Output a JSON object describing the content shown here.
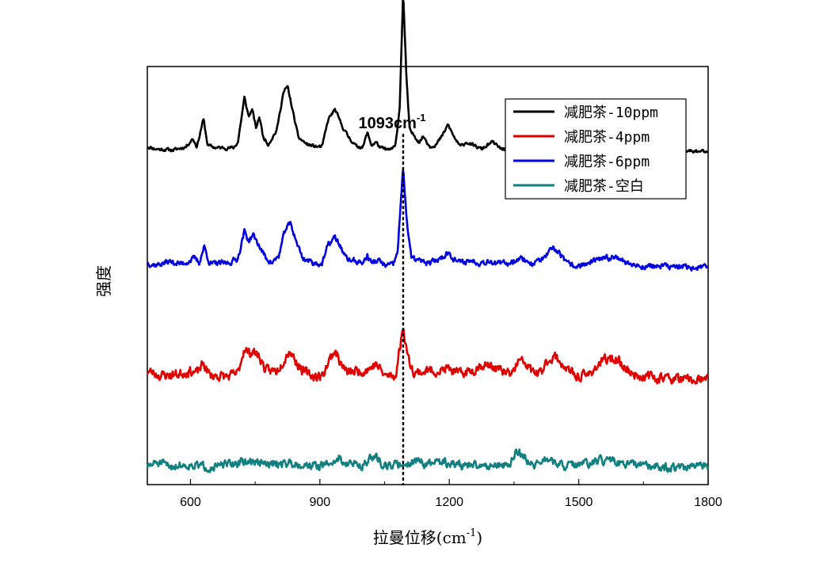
{
  "chart_data": {
    "type": "line",
    "title": "",
    "xlabel": "拉曼位移(cm",
    "xlabel_sup": "-1",
    "xlabel_tail": ")",
    "ylabel": "强度",
    "xlim": [
      500,
      1800
    ],
    "x_ticks": [
      600,
      900,
      1200,
      1500,
      1800
    ],
    "x_tick_labels": [
      "600",
      "900",
      "1200",
      "1500",
      "1800"
    ],
    "y_ticks_shown": false,
    "annotation": {
      "x": 1093,
      "text": "1093cm",
      "sup": "-1",
      "style": "dotted vertical line"
    },
    "legend_position": "top-right",
    "series": [
      {
        "name": "减肥茶-10ppm",
        "color": "#000000",
        "offset": 1.0,
        "noise": 0.012,
        "seed": 11,
        "points": [
          [
            500,
            0.06
          ],
          [
            520,
            0.04
          ],
          [
            560,
            0.03
          ],
          [
            590,
            0.06
          ],
          [
            605,
            0.13
          ],
          [
            615,
            0.06
          ],
          [
            630,
            0.3
          ],
          [
            640,
            0.07
          ],
          [
            660,
            0.05
          ],
          [
            700,
            0.05
          ],
          [
            710,
            0.1
          ],
          [
            725,
            0.48
          ],
          [
            735,
            0.32
          ],
          [
            743,
            0.38
          ],
          [
            752,
            0.22
          ],
          [
            760,
            0.32
          ],
          [
            768,
            0.15
          ],
          [
            780,
            0.08
          ],
          [
            800,
            0.2
          ],
          [
            815,
            0.52
          ],
          [
            825,
            0.58
          ],
          [
            838,
            0.35
          ],
          [
            850,
            0.14
          ],
          [
            870,
            0.08
          ],
          [
            890,
            0.06
          ],
          [
            905,
            0.06
          ],
          [
            920,
            0.3
          ],
          [
            935,
            0.38
          ],
          [
            950,
            0.25
          ],
          [
            965,
            0.15
          ],
          [
            985,
            0.06
          ],
          [
            1000,
            0.06
          ],
          [
            1010,
            0.18
          ],
          [
            1020,
            0.07
          ],
          [
            1030,
            0.1
          ],
          [
            1040,
            0.05
          ],
          [
            1060,
            0.03
          ],
          [
            1075,
            0.06
          ],
          [
            1085,
            0.4
          ],
          [
            1093,
            1.4
          ],
          [
            1100,
            0.7
          ],
          [
            1108,
            0.2
          ],
          [
            1120,
            0.15
          ],
          [
            1130,
            0.1
          ],
          [
            1140,
            0.15
          ],
          [
            1155,
            0.06
          ],
          [
            1170,
            0.08
          ],
          [
            1185,
            0.16
          ],
          [
            1197,
            0.25
          ],
          [
            1210,
            0.15
          ],
          [
            1225,
            0.06
          ],
          [
            1240,
            0.1
          ],
          [
            1255,
            0.07
          ],
          [
            1275,
            0.04
          ],
          [
            1300,
            0.1
          ],
          [
            1320,
            0.04
          ],
          [
            1350,
            0.05
          ],
          [
            1370,
            0.08
          ],
          [
            1400,
            0.06
          ],
          [
            1425,
            0.12
          ],
          [
            1440,
            0.22
          ],
          [
            1455,
            0.17
          ],
          [
            1470,
            0.07
          ],
          [
            1490,
            0.04
          ],
          [
            1510,
            0.05
          ],
          [
            1530,
            0.1
          ],
          [
            1550,
            0.07
          ],
          [
            1565,
            0.12
          ],
          [
            1575,
            0.1
          ],
          [
            1590,
            0.15
          ],
          [
            1605,
            0.08
          ],
          [
            1620,
            0.04
          ],
          [
            1650,
            0.04
          ],
          [
            1700,
            0.03
          ],
          [
            1750,
            0.02
          ],
          [
            1800,
            0.02
          ]
        ]
      },
      {
        "name": "减肥茶-4ppm",
        "color": "#e00000",
        "offset": -0.97,
        "noise": 0.035,
        "seed": 23,
        "points": [
          [
            500,
            0.1
          ],
          [
            530,
            0.06
          ],
          [
            570,
            0.07
          ],
          [
            600,
            0.1
          ],
          [
            615,
            0.08
          ],
          [
            630,
            0.16
          ],
          [
            645,
            0.06
          ],
          [
            690,
            0.05
          ],
          [
            710,
            0.08
          ],
          [
            725,
            0.3
          ],
          [
            735,
            0.25
          ],
          [
            745,
            0.27
          ],
          [
            760,
            0.22
          ],
          [
            775,
            0.1
          ],
          [
            800,
            0.1
          ],
          [
            820,
            0.22
          ],
          [
            830,
            0.28
          ],
          [
            845,
            0.18
          ],
          [
            860,
            0.1
          ],
          [
            880,
            0.06
          ],
          [
            905,
            0.05
          ],
          [
            920,
            0.18
          ],
          [
            935,
            0.28
          ],
          [
            950,
            0.15
          ],
          [
            965,
            0.08
          ],
          [
            985,
            0.1
          ],
          [
            1000,
            0.1
          ],
          [
            1015,
            0.12
          ],
          [
            1030,
            0.16
          ],
          [
            1050,
            0.06
          ],
          [
            1075,
            0.05
          ],
          [
            1093,
            0.48
          ],
          [
            1105,
            0.2
          ],
          [
            1120,
            0.08
          ],
          [
            1150,
            0.1
          ],
          [
            1180,
            0.1
          ],
          [
            1200,
            0.12
          ],
          [
            1220,
            0.07
          ],
          [
            1250,
            0.1
          ],
          [
            1275,
            0.15
          ],
          [
            1300,
            0.14
          ],
          [
            1330,
            0.08
          ],
          [
            1345,
            0.07
          ],
          [
            1360,
            0.18
          ],
          [
            1375,
            0.17
          ],
          [
            1390,
            0.1
          ],
          [
            1410,
            0.07
          ],
          [
            1430,
            0.2
          ],
          [
            1445,
            0.22
          ],
          [
            1460,
            0.17
          ],
          [
            1475,
            0.1
          ],
          [
            1495,
            0.05
          ],
          [
            1520,
            0.06
          ],
          [
            1545,
            0.15
          ],
          [
            1565,
            0.2
          ],
          [
            1585,
            0.2
          ],
          [
            1600,
            0.16
          ],
          [
            1620,
            0.08
          ],
          [
            1650,
            0.05
          ],
          [
            1700,
            0.04
          ],
          [
            1750,
            0.02
          ],
          [
            1800,
            0.02
          ]
        ]
      },
      {
        "name": "减肥茶-6ppm",
        "color": "#0000e0",
        "offset": 0.0,
        "noise": 0.02,
        "seed": 37,
        "points": [
          [
            500,
            0.06
          ],
          [
            520,
            0.04
          ],
          [
            550,
            0.07
          ],
          [
            580,
            0.05
          ],
          [
            600,
            0.08
          ],
          [
            610,
            0.1
          ],
          [
            620,
            0.06
          ],
          [
            632,
            0.2
          ],
          [
            645,
            0.05
          ],
          [
            690,
            0.06
          ],
          [
            710,
            0.1
          ],
          [
            725,
            0.33
          ],
          [
            735,
            0.25
          ],
          [
            745,
            0.3
          ],
          [
            760,
            0.2
          ],
          [
            775,
            0.1
          ],
          [
            790,
            0.06
          ],
          [
            805,
            0.12
          ],
          [
            820,
            0.35
          ],
          [
            832,
            0.4
          ],
          [
            845,
            0.25
          ],
          [
            860,
            0.1
          ],
          [
            885,
            0.06
          ],
          [
            905,
            0.05
          ],
          [
            920,
            0.22
          ],
          [
            935,
            0.28
          ],
          [
            948,
            0.2
          ],
          [
            960,
            0.1
          ],
          [
            975,
            0.08
          ],
          [
            1000,
            0.06
          ],
          [
            1010,
            0.12
          ],
          [
            1020,
            0.06
          ],
          [
            1035,
            0.08
          ],
          [
            1050,
            0.04
          ],
          [
            1070,
            0.04
          ],
          [
            1080,
            0.15
          ],
          [
            1093,
            0.88
          ],
          [
            1102,
            0.4
          ],
          [
            1112,
            0.1
          ],
          [
            1130,
            0.08
          ],
          [
            1150,
            0.05
          ],
          [
            1180,
            0.1
          ],
          [
            1197,
            0.15
          ],
          [
            1210,
            0.1
          ],
          [
            1225,
            0.06
          ],
          [
            1250,
            0.08
          ],
          [
            1270,
            0.06
          ],
          [
            1295,
            0.08
          ],
          [
            1310,
            0.05
          ],
          [
            1340,
            0.06
          ],
          [
            1360,
            0.1
          ],
          [
            1375,
            0.09
          ],
          [
            1390,
            0.05
          ],
          [
            1420,
            0.1
          ],
          [
            1440,
            0.18
          ],
          [
            1455,
            0.15
          ],
          [
            1470,
            0.06
          ],
          [
            1490,
            0.03
          ],
          [
            1520,
            0.05
          ],
          [
            1540,
            0.08
          ],
          [
            1570,
            0.1
          ],
          [
            1590,
            0.12
          ],
          [
            1610,
            0.06
          ],
          [
            1640,
            0.03
          ],
          [
            1700,
            0.03
          ],
          [
            1750,
            0.02
          ],
          [
            1800,
            0.02
          ]
        ]
      },
      {
        "name": "减肥茶-空白",
        "color": "#128080",
        "offset": -1.72,
        "noise": 0.03,
        "seed": 51,
        "points": [
          [
            500,
            0.02
          ],
          [
            520,
            0.06
          ],
          [
            550,
            0.03
          ],
          [
            600,
            0.04
          ],
          [
            650,
            0.02
          ],
          [
            700,
            0.05
          ],
          [
            740,
            0.07
          ],
          [
            780,
            0.04
          ],
          [
            820,
            0.06
          ],
          [
            870,
            0.04
          ],
          [
            900,
            0.03
          ],
          [
            930,
            0.06
          ],
          [
            945,
            0.1
          ],
          [
            960,
            0.05
          ],
          [
            1000,
            0.04
          ],
          [
            1030,
            0.12
          ],
          [
            1045,
            0.04
          ],
          [
            1080,
            0.04
          ],
          [
            1100,
            0.05
          ],
          [
            1125,
            0.08
          ],
          [
            1150,
            0.04
          ],
          [
            1175,
            0.07
          ],
          [
            1200,
            0.05
          ],
          [
            1250,
            0.03
          ],
          [
            1300,
            0.04
          ],
          [
            1340,
            0.04
          ],
          [
            1355,
            0.15
          ],
          [
            1368,
            0.14
          ],
          [
            1380,
            0.08
          ],
          [
            1395,
            0.04
          ],
          [
            1410,
            0.06
          ],
          [
            1430,
            0.09
          ],
          [
            1450,
            0.04
          ],
          [
            1480,
            0.03
          ],
          [
            1520,
            0.05
          ],
          [
            1560,
            0.08
          ],
          [
            1600,
            0.05
          ],
          [
            1650,
            0.03
          ],
          [
            1700,
            0.02
          ],
          [
            1750,
            0.02
          ],
          [
            1800,
            0.02
          ]
        ]
      }
    ]
  }
}
